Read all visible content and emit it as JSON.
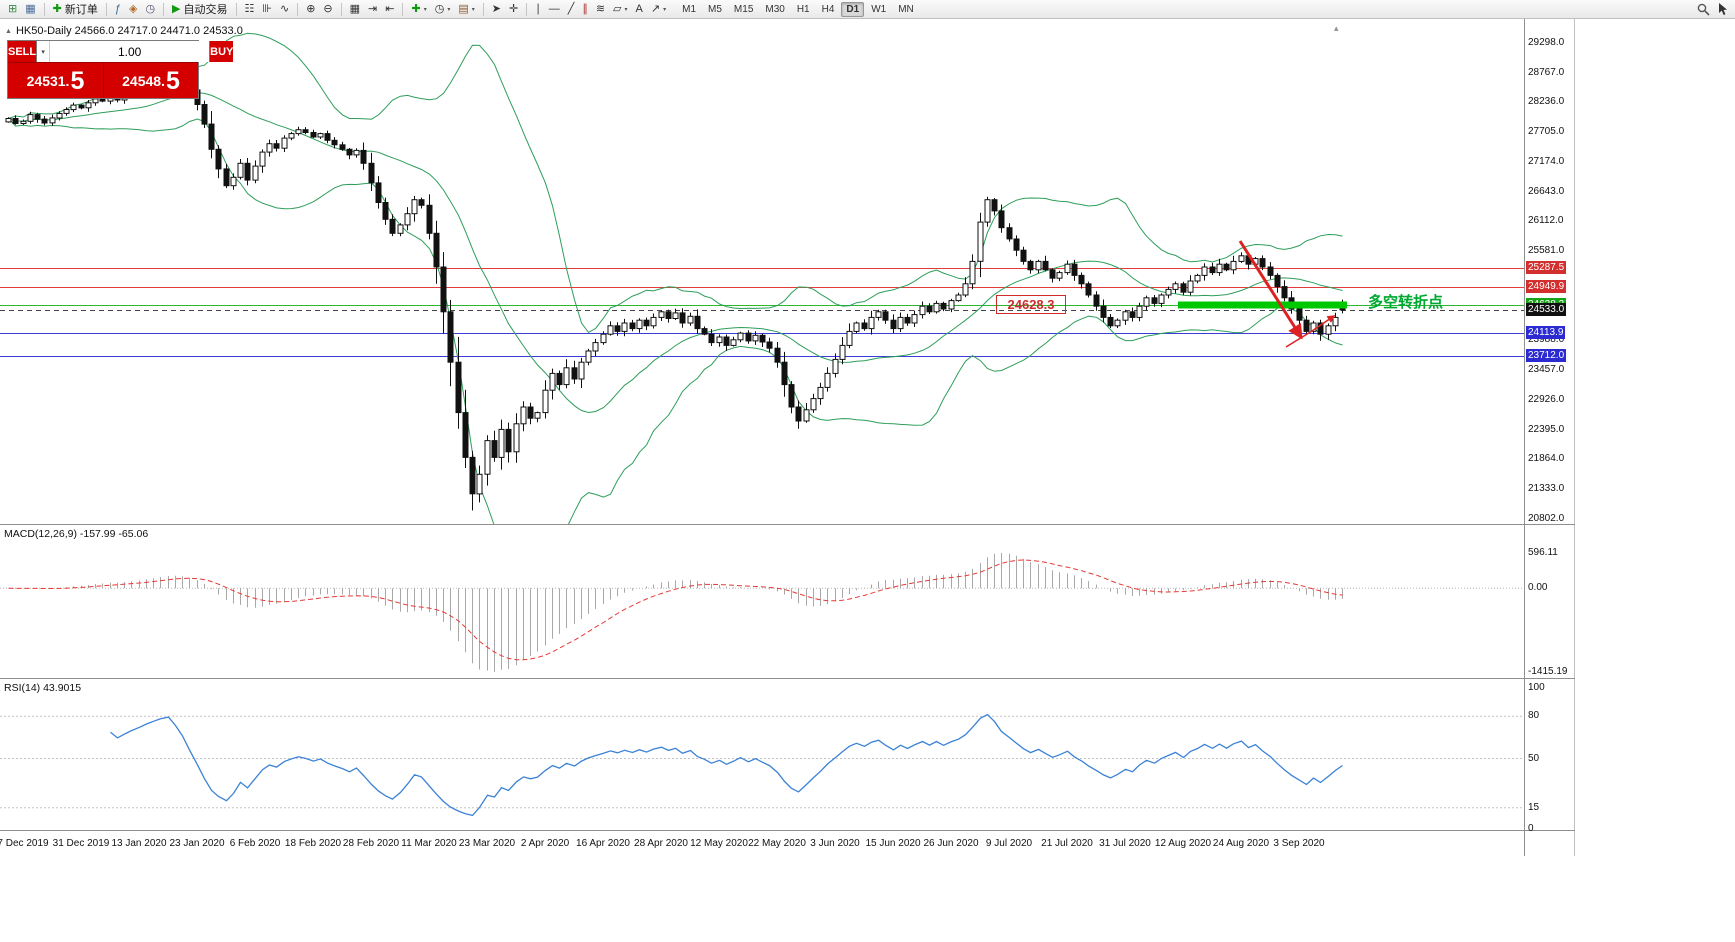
{
  "toolbar": {
    "groups": [
      {
        "items": [
          {
            "name": "new-chart-button",
            "glyph": "⊞",
            "color": "#3a8a4a"
          },
          {
            "name": "profiles-button",
            "glyph": "▦",
            "color": "#4a6a9a"
          }
        ]
      },
      {
        "items": [
          {
            "name": "new-order-button",
            "glyph": "✚",
            "color": "#119911",
            "label": "新订单"
          }
        ]
      },
      {
        "items": [
          {
            "name": "expert-advisors-button",
            "glyph": "ƒ",
            "color": "#3a6a9a"
          },
          {
            "name": "market-watch-button",
            "glyph": "◈",
            "color": "#b06a2a"
          },
          {
            "name": "history-center-button",
            "glyph": "◷",
            "color": "#557"
          }
        ]
      },
      {
        "items": [
          {
            "name": "autotrading-button",
            "glyph": "▶",
            "color": "#119911",
            "label": "自动交易"
          }
        ]
      },
      {
        "items": [
          {
            "name": "bar-chart-button",
            "glyph": "☷",
            "color": "#333"
          },
          {
            "name": "candlestick-chart-button",
            "glyph": "⊪",
            "color": "#333"
          },
          {
            "name": "line-chart-button",
            "glyph": "∿",
            "color": "#333"
          }
        ]
      },
      {
        "items": [
          {
            "name": "zoom-in-button",
            "glyph": "⊕",
            "color": "#333"
          },
          {
            "name": "zoom-out-button",
            "glyph": "⊖",
            "color": "#333"
          }
        ]
      },
      {
        "items": [
          {
            "name": "tile-windows-button",
            "glyph": "▦",
            "color": "#333"
          },
          {
            "name": "auto-scroll-button",
            "glyph": "⇥",
            "color": "#333"
          },
          {
            "name": "chart-shift-button",
            "glyph": "⇤",
            "color": "#333"
          }
        ]
      },
      {
        "items": [
          {
            "name": "indicators-button",
            "glyph": "✚",
            "color": "#119911",
            "caret": true
          },
          {
            "name": "periods-button",
            "glyph": "◷",
            "color": "#333",
            "caret": true
          },
          {
            "name": "templates-button",
            "glyph": "▤",
            "color": "#8a5a2a",
            "caret": true
          }
        ]
      },
      {
        "items": [
          {
            "name": "cursor-button",
            "glyph": "➤",
            "color": "#333"
          },
          {
            "name": "crosshair-button",
            "glyph": "✛",
            "color": "#333"
          }
        ]
      },
      {
        "items": [
          {
            "name": "vertical-line-button",
            "glyph": "∣",
            "color": "#333"
          },
          {
            "name": "horizontal-line-button",
            "glyph": "―",
            "color": "#333"
          },
          {
            "name": "trendline-button",
            "glyph": "╱",
            "color": "#333"
          },
          {
            "name": "channel-button",
            "glyph": "∥",
            "color": "#a33"
          },
          {
            "name": "fibonacci-button",
            "glyph": "≋",
            "color": "#333"
          },
          {
            "name": "shapes-button",
            "glyph": "▱",
            "color": "#333",
            "caret": true
          },
          {
            "name": "text-label-button",
            "glyph": "A",
            "color": "#333"
          },
          {
            "name": "arrows-button",
            "glyph": "↗",
            "color": "#333",
            "caret": true
          }
        ]
      }
    ],
    "timeframes": [
      "M1",
      "M5",
      "M15",
      "M30",
      "H1",
      "H4",
      "D1",
      "W1",
      "MN"
    ],
    "active_timeframe": "D1",
    "right_icons": [
      {
        "name": "search-icon"
      },
      {
        "name": "cursor-icon"
      }
    ]
  },
  "trade_panel": {
    "sell_label": "SELL",
    "buy_label": "BUY",
    "volume": "1.00",
    "sell_price": "24531.5",
    "buy_price": "24548.5",
    "button_color": "#d40000"
  },
  "chart_data": {
    "type": "candlestick",
    "symbol": "HK50",
    "period": "Daily",
    "title_display": "HK50-Daily 24566.0 24717.0 24471.0 24533.0",
    "ohlc_display": {
      "open": "24566.0",
      "high": "24717.0",
      "low": "24471.0",
      "close": "24533.0"
    },
    "last_ohlc": [
      24566.0,
      24717.0,
      24471.0,
      24533.0
    ],
    "y_range": [
      20712,
      29726
    ],
    "y_axis_ticks": [
      {
        "value": 29298,
        "label": "29298.0"
      },
      {
        "value": 28767,
        "label": "28767.0"
      },
      {
        "value": 28236,
        "label": "28236.0"
      },
      {
        "value": 27705,
        "label": "27705.0"
      },
      {
        "value": 27174,
        "label": "27174.0"
      },
      {
        "value": 26643,
        "label": "26643.0"
      },
      {
        "value": 26112,
        "label": "26112.0"
      },
      {
        "value": 25581,
        "label": "25581.0"
      },
      {
        "value": 23988,
        "label": "23988.0"
      },
      {
        "value": 23457,
        "label": "23457.0"
      },
      {
        "value": 22926,
        "label": "22926.0"
      },
      {
        "value": 22395,
        "label": "22395.0"
      },
      {
        "value": 21864,
        "label": "21864.0"
      },
      {
        "value": 21333,
        "label": "21333.0"
      },
      {
        "value": 20802,
        "label": "20802.0"
      }
    ],
    "levels": [
      {
        "price": 25287.5,
        "label": "25287.5",
        "color": "#e13b3b",
        "badge": "#d32f2f"
      },
      {
        "price": 24949.9,
        "label": "24949.9",
        "color": "#e13b3b",
        "badge": "#d32f2f"
      },
      {
        "price": 24628.3,
        "label": "24628.3",
        "color": "#2eb82e",
        "badge": "#17a317"
      },
      {
        "price": 24113.9,
        "label": "24113.9",
        "color": "#3c3cd9",
        "badge": "#2b2bd1"
      },
      {
        "price": 23712.0,
        "label": "23712.0",
        "color": "#3c3cd9",
        "badge": "#2b2bd1"
      }
    ],
    "current_price": {
      "price": 24533.0,
      "label": "24533.0",
      "badge": "#111111"
    },
    "closes": [
      27950,
      27860,
      27900,
      28020,
      27940,
      27870,
      27960,
      28040,
      28110,
      28190,
      28140,
      28230,
      28300,
      28260,
      28340,
      28280,
      28360,
      28440,
      28520,
      28610,
      28690,
      28770,
      28830,
      28750,
      28640,
      28460,
      28200,
      27850,
      27400,
      27050,
      26750,
      26900,
      27150,
      26850,
      27100,
      27350,
      27500,
      27420,
      27600,
      27680,
      27750,
      27700,
      27620,
      27680,
      27560,
      27480,
      27400,
      27300,
      27380,
      27150,
      26800,
      26450,
      26150,
      25900,
      26050,
      26250,
      26500,
      26400,
      25900,
      25300,
      24500,
      23600,
      22700,
      21900,
      21250,
      21600,
      22200,
      21900,
      22400,
      22000,
      22500,
      22800,
      22600,
      22700,
      23100,
      23400,
      23200,
      23500,
      23300,
      23600,
      23800,
      23950,
      24100,
      24250,
      24150,
      24300,
      24200,
      24350,
      24250,
      24400,
      24500,
      24380,
      24480,
      24300,
      24420,
      24200,
      24100,
      23950,
      24050,
      23900,
      24000,
      24120,
      23980,
      24080,
      23960,
      23850,
      23600,
      23200,
      22800,
      22550,
      22750,
      22950,
      23150,
      23400,
      23650,
      23900,
      24150,
      24300,
      24200,
      24400,
      24500,
      24350,
      24200,
      24400,
      24300,
      24450,
      24600,
      24500,
      24650,
      24550,
      24700,
      24800,
      25000,
      25400,
      26100,
      26500,
      26300,
      26000,
      25800,
      25600,
      25400,
      25250,
      25400,
      25250,
      25100,
      25200,
      25350,
      25150,
      25000,
      24800,
      24600,
      24400,
      24250,
      24350,
      24500,
      24400,
      24600,
      24750,
      24650,
      24800,
      24900,
      25000,
      24850,
      25050,
      25150,
      25300,
      25200,
      25350,
      25250,
      25400,
      25500,
      25350,
      25450,
      25300,
      25150,
      24950,
      24750,
      24550,
      24350,
      24150,
      24300,
      24100,
      24250,
      24400,
      24533
    ],
    "x_axis_labels": [
      {
        "label": "7 Dec 2019",
        "index": 2
      },
      {
        "label": "31 Dec 2019",
        "index": 10
      },
      {
        "label": "13 Jan 2020",
        "index": 18
      },
      {
        "label": "23 Jan 2020",
        "index": 26
      },
      {
        "label": "6 Feb 2020",
        "index": 34
      },
      {
        "label": "18 Feb 2020",
        "index": 42
      },
      {
        "label": "28 Feb 2020",
        "index": 50
      },
      {
        "label": "11 Mar 2020",
        "index": 58
      },
      {
        "label": "23 Mar 2020",
        "index": 66
      },
      {
        "label": "2 Apr 2020",
        "index": 74
      },
      {
        "label": "16 Apr 2020",
        "index": 82
      },
      {
        "label": "28 Apr 2020",
        "index": 90
      },
      {
        "label": "12 May 2020",
        "index": 98
      },
      {
        "label": "22 May 2020",
        "index": 106
      },
      {
        "label": "3 Jun 2020",
        "index": 114
      },
      {
        "label": "15 Jun 2020",
        "index": 122
      },
      {
        "label": "26 Jun 2020",
        "index": 130
      },
      {
        "label": "9 Jul 2020",
        "index": 138
      },
      {
        "label": "21 Jul 2020",
        "index": 146
      },
      {
        "label": "31 Jul 2020",
        "index": 154
      },
      {
        "label": "12 Aug 2020",
        "index": 162
      },
      {
        "label": "24 Aug 2020",
        "index": 170
      },
      {
        "label": "3 Sep 2020",
        "index": 178
      }
    ],
    "indicators": {
      "bollinger_bands": {
        "period": 20,
        "deviation": 2,
        "color": "#2e9e5a"
      },
      "macd": {
        "display": "MACD(12,26,9) -157.99 -65.06",
        "macd_value": -157.99,
        "signal_value": -65.06,
        "axis_max": 596.11,
        "axis_min": -1415.19,
        "axis_labels": [
          "596.11",
          "0.00",
          "-1415.19"
        ],
        "histogram_color": "#a8a8a8",
        "signal_color": "#e53935"
      },
      "rsi": {
        "display": "RSI(14) 43.9015",
        "value": 43.9015,
        "axis_labels": [
          100,
          80,
          50,
          15,
          0
        ],
        "levels": [
          80,
          50,
          15
        ],
        "color": "#3b82d6"
      }
    },
    "annotations": {
      "price_callout": "24628.3",
      "pivot_label": "多空转折点",
      "support_bar_color": "#00c800",
      "arrow_color": "#dd2222"
    }
  }
}
